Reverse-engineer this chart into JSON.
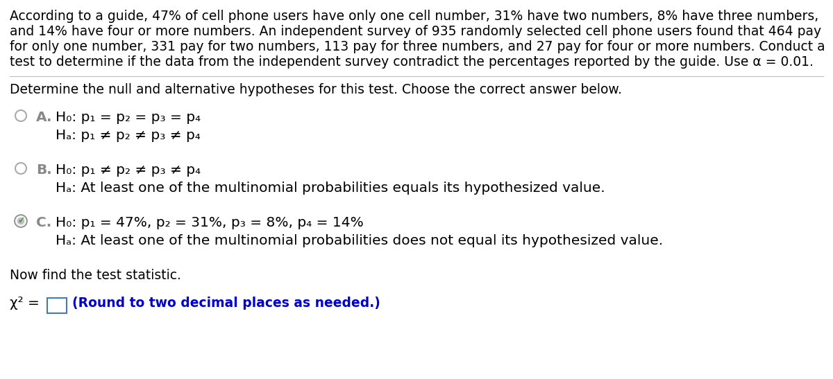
{
  "background_color": "#ffffff",
  "text_color": "#000000",
  "blue_color": "#0000cc",
  "gray_color": "#888888",
  "green_color": "#2e7d32",
  "figsize": [
    12.0,
    5.47
  ],
  "dpi": 100,
  "para1": "According to a guide, 47% of cell phone users have only one cell number, 31% have two numbers, 8% have three numbers,",
  "para2": "and 14% have four or more numbers. An independent survey of 935 randomly selected cell phone users found that 464 pay",
  "para3": "for only one number, 331 pay for two numbers, 113 pay for three numbers, and 27 pay for four or more numbers. Conduct a",
  "para4": "test to determine if the data from the independent survey contradict the percentages reported by the guide. Use α = 0.01.",
  "section_text": "Determine the null and alternative hypotheses for this test. Choose the correct answer below.",
  "A_label": "A.",
  "A_H0": "H₀: p₁ = p₂ = p₃ = p₄",
  "A_Ha": "Hₐ: p₁ ≠ p₂ ≠ p₃ ≠ p₄",
  "B_label": "B.",
  "B_H0": "H₀: p₁ ≠ p₂ ≠ p₃ ≠ p₄",
  "B_Ha": "Hₐ: At least one of the multinomial probabilities equals its hypothesized value.",
  "C_label": "C.",
  "C_H0": "H₀: p₁ = 47%, p₂ = 31%, p₃ = 8%, p₄ = 14%",
  "C_Ha": "Hₐ: At least one of the multinomial probabilities does not equal its hypothesized value.",
  "now_find": "Now find the test statistic.",
  "chi_label": "χ² =",
  "round_note": "(Round to two decimal places as needed.)"
}
